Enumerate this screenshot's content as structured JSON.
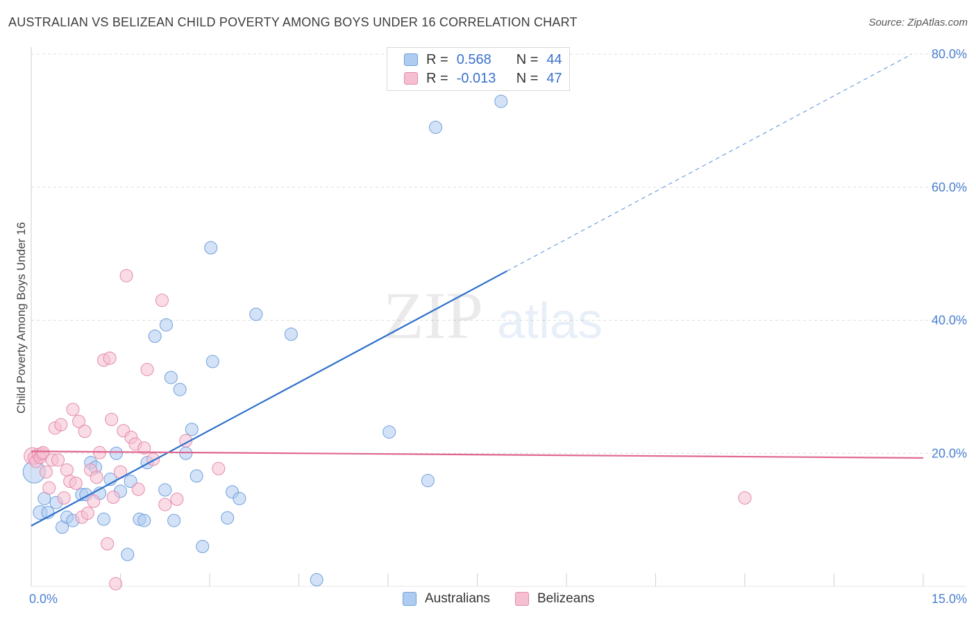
{
  "title": "AUSTRALIAN VS BELIZEAN CHILD POVERTY AMONG BOYS UNDER 16 CORRELATION CHART",
  "source": "Source: ZipAtlas.com",
  "watermark": {
    "zip": "ZIP",
    "atlas": "atlas"
  },
  "legend": {
    "rows": [
      {
        "r_label": "R =",
        "r_value": "0.568",
        "n_label": "N =",
        "n_value": "44"
      },
      {
        "r_label": "R =",
        "r_value": "-0.013",
        "n_label": "N =",
        "n_value": "47"
      }
    ]
  },
  "colors": {
    "blue_fill": "#aecbf0",
    "blue_stroke": "#6f9fdc",
    "blue_line": "#2b6fcc",
    "pink_fill": "#f5bfd1",
    "pink_stroke": "#e48aab",
    "pink_line": "#e0668e",
    "grid": "#dddddd",
    "tick_text": "#4a7fd0"
  },
  "chart_data": {
    "type": "scatter",
    "title": "AUSTRALIAN VS BELIZEAN CHILD POVERTY AMONG BOYS UNDER 16 CORRELATION CHART",
    "xlabel": "",
    "ylabel": "Child Poverty Among Boys Under 16",
    "xlim": [
      0,
      15
    ],
    "ylim": [
      0,
      80
    ],
    "x_tick_labels": [
      "0.0%",
      "15.0%"
    ],
    "y_ticks": [
      20,
      40,
      60,
      80
    ],
    "y_tick_labels": [
      "20.0%",
      "40.0%",
      "60.0%",
      "80.0%"
    ],
    "series": [
      {
        "name": "Australians",
        "r": 0.568,
        "n": 44,
        "trend": {
          "x0": 0,
          "y0": 9.1,
          "x1": 8.0,
          "y1": 47.4,
          "dash_to_x": 14.8
        },
        "points": [
          [
            0.05,
            17.2,
            16
          ],
          [
            0.15,
            11.1,
            10
          ],
          [
            0.22,
            13.2,
            9
          ],
          [
            0.28,
            11.1,
            9
          ],
          [
            0.42,
            12.6,
            9
          ],
          [
            0.52,
            8.9,
            9
          ],
          [
            0.6,
            10.4,
            9
          ],
          [
            0.7,
            9.9,
            9
          ],
          [
            0.85,
            13.8,
            9
          ],
          [
            0.92,
            13.8,
            9
          ],
          [
            1.0,
            18.6,
            9
          ],
          [
            1.08,
            17.9,
            9
          ],
          [
            1.15,
            14.0,
            9
          ],
          [
            1.22,
            10.1,
            9
          ],
          [
            1.33,
            16.1,
            9
          ],
          [
            1.43,
            20.0,
            9
          ],
          [
            1.5,
            14.3,
            9
          ],
          [
            1.62,
            4.8,
            9
          ],
          [
            1.67,
            15.8,
            9
          ],
          [
            1.82,
            10.1,
            9
          ],
          [
            1.9,
            9.9,
            9
          ],
          [
            1.95,
            18.6,
            9
          ],
          [
            2.08,
            37.6,
            9
          ],
          [
            2.25,
            14.5,
            9
          ],
          [
            2.27,
            39.3,
            9
          ],
          [
            2.35,
            31.4,
            9
          ],
          [
            2.4,
            9.9,
            9
          ],
          [
            2.5,
            29.6,
            9
          ],
          [
            2.6,
            20.0,
            9
          ],
          [
            2.7,
            23.6,
            9
          ],
          [
            2.78,
            16.6,
            9
          ],
          [
            2.88,
            6.0,
            9
          ],
          [
            3.02,
            50.9,
            9
          ],
          [
            3.05,
            33.8,
            9
          ],
          [
            3.3,
            10.3,
            9
          ],
          [
            3.38,
            14.2,
            9
          ],
          [
            3.5,
            13.2,
            9
          ],
          [
            3.78,
            40.9,
            9
          ],
          [
            4.37,
            37.9,
            9
          ],
          [
            4.8,
            1.0,
            9
          ],
          [
            6.02,
            23.2,
            9
          ],
          [
            6.67,
            15.9,
            9
          ],
          [
            6.8,
            69.0,
            9
          ],
          [
            7.9,
            72.9,
            9
          ]
        ]
      },
      {
        "name": "Belizeans",
        "r": -0.013,
        "n": 47,
        "trend": {
          "x0": 0,
          "y0": 20.3,
          "x1": 15.0,
          "y1": 19.3
        },
        "points": [
          [
            0.02,
            19.6,
            12
          ],
          [
            0.05,
            19.3,
            9
          ],
          [
            0.08,
            18.8,
            9
          ],
          [
            0.12,
            19.8,
            9
          ],
          [
            0.15,
            19.4,
            9
          ],
          [
            0.18,
            19.9,
            9
          ],
          [
            0.2,
            20.1,
            9
          ],
          [
            0.25,
            17.2,
            9
          ],
          [
            0.3,
            14.8,
            9
          ],
          [
            0.35,
            19.0,
            9
          ],
          [
            0.4,
            23.8,
            9
          ],
          [
            0.45,
            19.0,
            9
          ],
          [
            0.5,
            24.3,
            9
          ],
          [
            0.55,
            13.3,
            9
          ],
          [
            0.6,
            17.5,
            9
          ],
          [
            0.65,
            15.8,
            9
          ],
          [
            0.7,
            26.6,
            9
          ],
          [
            0.75,
            15.5,
            9
          ],
          [
            0.8,
            24.8,
            9
          ],
          [
            0.85,
            10.4,
            9
          ],
          [
            0.9,
            23.3,
            9
          ],
          [
            0.95,
            11.0,
            9
          ],
          [
            1.0,
            17.5,
            9
          ],
          [
            1.05,
            12.8,
            9
          ],
          [
            1.1,
            16.4,
            9
          ],
          [
            1.15,
            20.1,
            9
          ],
          [
            1.22,
            34.0,
            9
          ],
          [
            1.28,
            6.4,
            9
          ],
          [
            1.32,
            34.3,
            9
          ],
          [
            1.35,
            25.1,
            9
          ],
          [
            1.38,
            13.4,
            9
          ],
          [
            1.42,
            0.4,
            9
          ],
          [
            1.5,
            17.2,
            9
          ],
          [
            1.55,
            23.4,
            9
          ],
          [
            1.6,
            46.7,
            9
          ],
          [
            1.68,
            22.4,
            9
          ],
          [
            1.75,
            21.4,
            9
          ],
          [
            1.8,
            14.6,
            9
          ],
          [
            1.9,
            20.8,
            9
          ],
          [
            1.95,
            32.6,
            9
          ],
          [
            2.05,
            19.1,
            9
          ],
          [
            2.2,
            43.0,
            9
          ],
          [
            2.25,
            12.3,
            9
          ],
          [
            2.45,
            13.1,
            9
          ],
          [
            2.6,
            21.9,
            9
          ],
          [
            3.15,
            17.7,
            9
          ],
          [
            12.0,
            13.3,
            9
          ]
        ]
      }
    ],
    "bottom_legend": [
      "Australians",
      "Belizeans"
    ]
  }
}
